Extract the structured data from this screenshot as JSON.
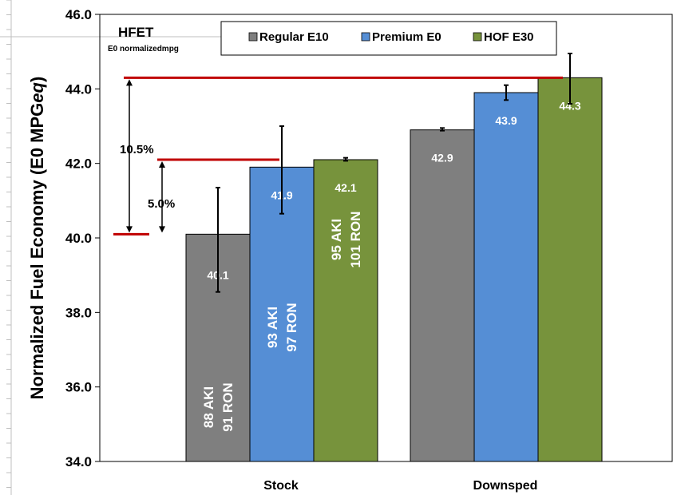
{
  "chart_data": {
    "type": "bar",
    "ylabel": "Normalized Fuel Economy (E0 MPGeq)",
    "ylabel_parts": {
      "main": "Normalized Fuel Economy (E0 MPG",
      "italic": "eq",
      "close": ")"
    },
    "ylim": [
      34.0,
      46.0
    ],
    "yticks": [
      "34.0",
      "36.0",
      "38.0",
      "40.0",
      "42.0",
      "44.0",
      "46.0"
    ],
    "grid": false,
    "legend_position": "top",
    "categories": [
      "Stock",
      "Downsped"
    ],
    "series": [
      {
        "name": "Regular E10",
        "color": "#7f7f7f",
        "values": [
          40.1,
          42.9
        ],
        "error_low": [
          38.55,
          42.88
        ],
        "error_high": [
          41.35,
          42.95
        ],
        "value_labels": [
          "40.1",
          "42.9"
        ],
        "octane_lines": [
          "88 AKI",
          "91 RON"
        ]
      },
      {
        "name": "Premium E0",
        "color": "#558ed5",
        "values": [
          41.9,
          43.9
        ],
        "error_low": [
          40.65,
          43.7
        ],
        "error_high": [
          43.0,
          44.1
        ],
        "value_labels": [
          "41.9",
          "43.9"
        ],
        "octane_lines": [
          "93 AKI",
          "97 RON"
        ]
      },
      {
        "name": "HOF E30",
        "color": "#77933c",
        "values": [
          42.1,
          44.3
        ],
        "error_low": [
          42.07,
          43.6
        ],
        "error_high": [
          42.15,
          44.95
        ],
        "value_labels": [
          "42.1",
          "44.3"
        ],
        "octane_lines": [
          "95 AKI",
          "101 RON"
        ]
      }
    ],
    "annotations": {
      "title": "HFET",
      "subtitle": "E0 normalizedmpg",
      "reference_levels": [
        40.1,
        42.1,
        44.3
      ],
      "reference_color": "#c00000",
      "pct_labels": [
        {
          "text": "10.5%",
          "from": 40.1,
          "to": 44.3
        },
        {
          "text": "5.0%",
          "from": 40.1,
          "to": 42.1
        }
      ]
    }
  }
}
